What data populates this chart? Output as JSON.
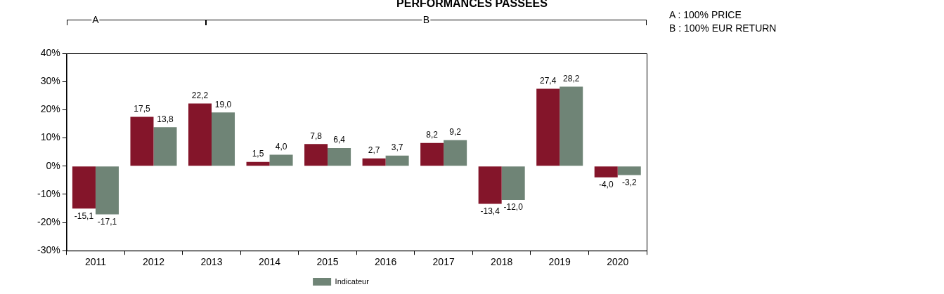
{
  "chart_data": {
    "type": "bar",
    "title": "PERFORMANCES PASSEES",
    "categories": [
      "2011",
      "2012",
      "2013",
      "2014",
      "2015",
      "2016",
      "2017",
      "2018",
      "2019",
      "2020"
    ],
    "series": [
      {
        "color": "#84152a",
        "values": [
          -15.1,
          17.5,
          22.2,
          1.5,
          7.8,
          2.7,
          8.2,
          -13.4,
          27.4,
          -4.0
        ],
        "value_labels": [
          "-15,1",
          "17,5",
          "22,2",
          "1,5",
          "7,8",
          "2,7",
          "8,2",
          "-13,4",
          "27,4",
          "-4,0"
        ]
      },
      {
        "name": "Indicateur",
        "color": "#6f8476",
        "values": [
          -17.1,
          13.8,
          19.0,
          4.0,
          6.4,
          3.7,
          9.2,
          -12.0,
          28.2,
          -3.2
        ],
        "value_labels": [
          "-17,1",
          "13,8",
          "19,0",
          "4,0",
          "6,4",
          "3,7",
          "9,2",
          "-12,0",
          "28,2",
          "-3,2"
        ]
      }
    ],
    "ylim": [
      -30,
      40
    ],
    "yticks": [
      {
        "value": -30,
        "label": "-30%"
      },
      {
        "value": -20,
        "label": "-20%"
      },
      {
        "value": -10,
        "label": "-10%"
      },
      {
        "value": 0,
        "label": "0%"
      },
      {
        "value": 10,
        "label": "10%"
      },
      {
        "value": 20,
        "label": "20%"
      },
      {
        "value": 30,
        "label": "30%"
      },
      {
        "value": 40,
        "label": "40%"
      }
    ],
    "grid": false,
    "legend": "bottom",
    "annotations": [
      "A",
      "B",
      "A : 100% PRICE",
      "B : 100% EUR RETURN"
    ]
  }
}
